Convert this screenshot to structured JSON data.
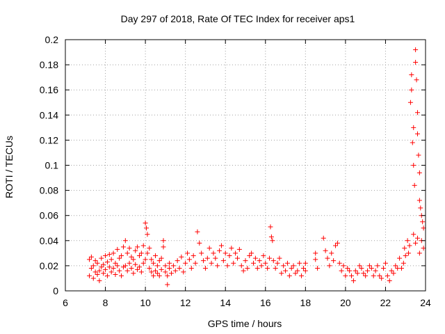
{
  "chart_data": {
    "type": "scatter",
    "title": "Day 297 of 2018, Rate Of TEC Index for receiver aps1",
    "xlabel": "GPS time / hours",
    "ylabel": "ROTI / TECUs",
    "xlim": [
      6,
      24
    ],
    "ylim": [
      0,
      0.2
    ],
    "x_ticks": [
      6,
      8,
      10,
      12,
      14,
      16,
      18,
      20,
      22,
      24
    ],
    "x_tick_labels": [
      "6",
      "8",
      "10",
      "12",
      "14",
      "16",
      "18",
      "20",
      "22",
      "24"
    ],
    "y_ticks": [
      0,
      0.02,
      0.04,
      0.06,
      0.08,
      0.1,
      0.12,
      0.14,
      0.16,
      0.18,
      0.2
    ],
    "y_tick_labels": [
      "0",
      "0.02",
      "0.04",
      "0.06",
      "0.08",
      "0.1",
      "0.12",
      "0.14",
      "0.16",
      "0.18",
      "0.2"
    ],
    "grid": true,
    "marker": "+",
    "marker_color": "#ff0000",
    "series": [
      {
        "points": [
          [
            7.2,
            0.012
          ],
          [
            7.2,
            0.025
          ],
          [
            7.3,
            0.018
          ],
          [
            7.3,
            0.027
          ],
          [
            7.4,
            0.01
          ],
          [
            7.4,
            0.02
          ],
          [
            7.5,
            0.015
          ],
          [
            7.5,
            0.024
          ],
          [
            7.6,
            0.013
          ],
          [
            7.6,
            0.022
          ],
          [
            7.7,
            0.016
          ],
          [
            7.7,
            0.008
          ],
          [
            7.8,
            0.019
          ],
          [
            7.8,
            0.026
          ],
          [
            7.9,
            0.014
          ],
          [
            7.9,
            0.021
          ],
          [
            8.0,
            0.017
          ],
          [
            8.0,
            0.028
          ],
          [
            8.1,
            0.012
          ],
          [
            8.1,
            0.023
          ],
          [
            8.2,
            0.019
          ],
          [
            8.2,
            0.029
          ],
          [
            8.3,
            0.015
          ],
          [
            8.3,
            0.025
          ],
          [
            8.4,
            0.018
          ],
          [
            8.4,
            0.03
          ],
          [
            8.5,
            0.013
          ],
          [
            8.5,
            0.022
          ],
          [
            8.6,
            0.02
          ],
          [
            8.6,
            0.033
          ],
          [
            8.7,
            0.016
          ],
          [
            8.7,
            0.026
          ],
          [
            8.8,
            0.012
          ],
          [
            8.8,
            0.028
          ],
          [
            8.9,
            0.019
          ],
          [
            8.9,
            0.035
          ],
          [
            9.0,
            0.02
          ],
          [
            9.0,
            0.04
          ],
          [
            9.1,
            0.016
          ],
          [
            9.1,
            0.03
          ],
          [
            9.2,
            0.022
          ],
          [
            9.2,
            0.034
          ],
          [
            9.3,
            0.018
          ],
          [
            9.3,
            0.027
          ],
          [
            9.4,
            0.014
          ],
          [
            9.4,
            0.025
          ],
          [
            9.5,
            0.021
          ],
          [
            9.5,
            0.032
          ],
          [
            9.6,
            0.017
          ],
          [
            9.6,
            0.035
          ],
          [
            9.7,
            0.019
          ],
          [
            9.7,
            0.028
          ],
          [
            9.8,
            0.015
          ],
          [
            9.8,
            0.03
          ],
          [
            9.9,
            0.022
          ],
          [
            9.9,
            0.036
          ],
          [
            10.0,
            0.025
          ],
          [
            10.0,
            0.054
          ],
          [
            10.05,
            0.05
          ],
          [
            10.1,
            0.045
          ],
          [
            10.1,
            0.03
          ],
          [
            10.2,
            0.034
          ],
          [
            10.2,
            0.018
          ],
          [
            10.3,
            0.015
          ],
          [
            10.3,
            0.025
          ],
          [
            10.4,
            0.012
          ],
          [
            10.4,
            0.022
          ],
          [
            10.5,
            0.016
          ],
          [
            10.5,
            0.028
          ],
          [
            10.6,
            0.014
          ],
          [
            10.6,
            0.02
          ],
          [
            10.7,
            0.012
          ],
          [
            10.7,
            0.024
          ],
          [
            10.8,
            0.017
          ],
          [
            10.8,
            0.026
          ],
          [
            10.9,
            0.04
          ],
          [
            10.9,
            0.035
          ],
          [
            11.0,
            0.015
          ],
          [
            11.0,
            0.02
          ],
          [
            11.1,
            0.005
          ],
          [
            11.1,
            0.012
          ],
          [
            11.2,
            0.018
          ],
          [
            11.2,
            0.022
          ],
          [
            11.3,
            0.014
          ],
          [
            11.4,
            0.02
          ],
          [
            11.5,
            0.016
          ],
          [
            11.6,
            0.024
          ],
          [
            11.7,
            0.018
          ],
          [
            11.8,
            0.027
          ],
          [
            11.9,
            0.015
          ],
          [
            12.0,
            0.022
          ],
          [
            12.1,
            0.03
          ],
          [
            12.2,
            0.025
          ],
          [
            12.3,
            0.018
          ],
          [
            12.4,
            0.028
          ],
          [
            12.5,
            0.022
          ],
          [
            12.6,
            0.047
          ],
          [
            12.7,
            0.038
          ],
          [
            12.8,
            0.03
          ],
          [
            12.9,
            0.024
          ],
          [
            13.0,
            0.018
          ],
          [
            13.1,
            0.026
          ],
          [
            13.2,
            0.034
          ],
          [
            13.3,
            0.022
          ],
          [
            13.4,
            0.03
          ],
          [
            13.5,
            0.026
          ],
          [
            13.6,
            0.02
          ],
          [
            13.7,
            0.032
          ],
          [
            13.8,
            0.036
          ],
          [
            13.9,
            0.024
          ],
          [
            14.0,
            0.03
          ],
          [
            14.1,
            0.02
          ],
          [
            14.2,
            0.028
          ],
          [
            14.3,
            0.034
          ],
          [
            14.4,
            0.022
          ],
          [
            14.5,
            0.03
          ],
          [
            14.6,
            0.026
          ],
          [
            14.7,
            0.033
          ],
          [
            14.8,
            0.02
          ],
          [
            14.9,
            0.016
          ],
          [
            15.0,
            0.024
          ],
          [
            15.1,
            0.018
          ],
          [
            15.2,
            0.028
          ],
          [
            15.3,
            0.03
          ],
          [
            15.4,
            0.022
          ],
          [
            15.5,
            0.026
          ],
          [
            15.6,
            0.018
          ],
          [
            15.7,
            0.024
          ],
          [
            15.8,
            0.02
          ],
          [
            15.9,
            0.028
          ],
          [
            16.0,
            0.022
          ],
          [
            16.1,
            0.018
          ],
          [
            16.2,
            0.026
          ],
          [
            16.25,
            0.051
          ],
          [
            16.3,
            0.043
          ],
          [
            16.35,
            0.04
          ],
          [
            16.4,
            0.024
          ],
          [
            16.5,
            0.018
          ],
          [
            16.6,
            0.022
          ],
          [
            16.7,
            0.026
          ],
          [
            16.8,
            0.014
          ],
          [
            16.9,
            0.02
          ],
          [
            17.0,
            0.016
          ],
          [
            17.1,
            0.022
          ],
          [
            17.2,
            0.012
          ],
          [
            17.3,
            0.018
          ],
          [
            17.4,
            0.02
          ],
          [
            17.5,
            0.014
          ],
          [
            17.6,
            0.016
          ],
          [
            17.7,
            0.022
          ],
          [
            17.8,
            0.012
          ],
          [
            17.9,
            0.018
          ],
          [
            18.0,
            0.016
          ],
          [
            18.0,
            0.022
          ],
          [
            18.5,
            0.025
          ],
          [
            18.5,
            0.03
          ],
          [
            18.6,
            0.018
          ],
          [
            18.9,
            0.042
          ],
          [
            19.0,
            0.032
          ],
          [
            19.1,
            0.026
          ],
          [
            19.2,
            0.02
          ],
          [
            19.3,
            0.03
          ],
          [
            19.4,
            0.024
          ],
          [
            19.5,
            0.036
          ],
          [
            19.6,
            0.038
          ],
          [
            19.7,
            0.022
          ],
          [
            19.8,
            0.016
          ],
          [
            19.9,
            0.02
          ],
          [
            20.0,
            0.012
          ],
          [
            20.1,
            0.018
          ],
          [
            20.2,
            0.016
          ],
          [
            20.3,
            0.012
          ],
          [
            20.4,
            0.008
          ],
          [
            20.5,
            0.016
          ],
          [
            20.6,
            0.014
          ],
          [
            20.7,
            0.02
          ],
          [
            20.8,
            0.018
          ],
          [
            20.9,
            0.014
          ],
          [
            21.0,
            0.012
          ],
          [
            21.1,
            0.016
          ],
          [
            21.2,
            0.02
          ],
          [
            21.3,
            0.018
          ],
          [
            21.4,
            0.012
          ],
          [
            21.5,
            0.016
          ],
          [
            21.6,
            0.02
          ],
          [
            21.7,
            0.012
          ],
          [
            21.8,
            0.01
          ],
          [
            21.9,
            0.018
          ],
          [
            22.0,
            0.022
          ],
          [
            22.1,
            0.012
          ],
          [
            22.2,
            0.008
          ],
          [
            22.3,
            0.016
          ],
          [
            22.4,
            0.014
          ],
          [
            22.5,
            0.02
          ],
          [
            22.6,
            0.018
          ],
          [
            22.7,
            0.026
          ],
          [
            22.8,
            0.018
          ],
          [
            22.9,
            0.022
          ],
          [
            22.95,
            0.034
          ],
          [
            23.0,
            0.028
          ],
          [
            23.1,
            0.04
          ],
          [
            23.15,
            0.03
          ],
          [
            23.2,
            0.036
          ],
          [
            23.25,
            0.15
          ],
          [
            23.3,
            0.172
          ],
          [
            23.3,
            0.16
          ],
          [
            23.35,
            0.118
          ],
          [
            23.4,
            0.13
          ],
          [
            23.4,
            0.1
          ],
          [
            23.45,
            0.084
          ],
          [
            23.5,
            0.192
          ],
          [
            23.5,
            0.182
          ],
          [
            23.55,
            0.168
          ],
          [
            23.6,
            0.142
          ],
          [
            23.6,
            0.125
          ],
          [
            23.65,
            0.108
          ],
          [
            23.7,
            0.094
          ],
          [
            23.7,
            0.072
          ],
          [
            23.75,
            0.066
          ],
          [
            23.8,
            0.06
          ],
          [
            23.85,
            0.055
          ],
          [
            23.9,
            0.05
          ],
          [
            23.4,
            0.045
          ],
          [
            23.5,
            0.038
          ],
          [
            23.6,
            0.042
          ],
          [
            23.7,
            0.03
          ],
          [
            23.8,
            0.04
          ],
          [
            23.9,
            0.034
          ]
        ]
      }
    ]
  }
}
